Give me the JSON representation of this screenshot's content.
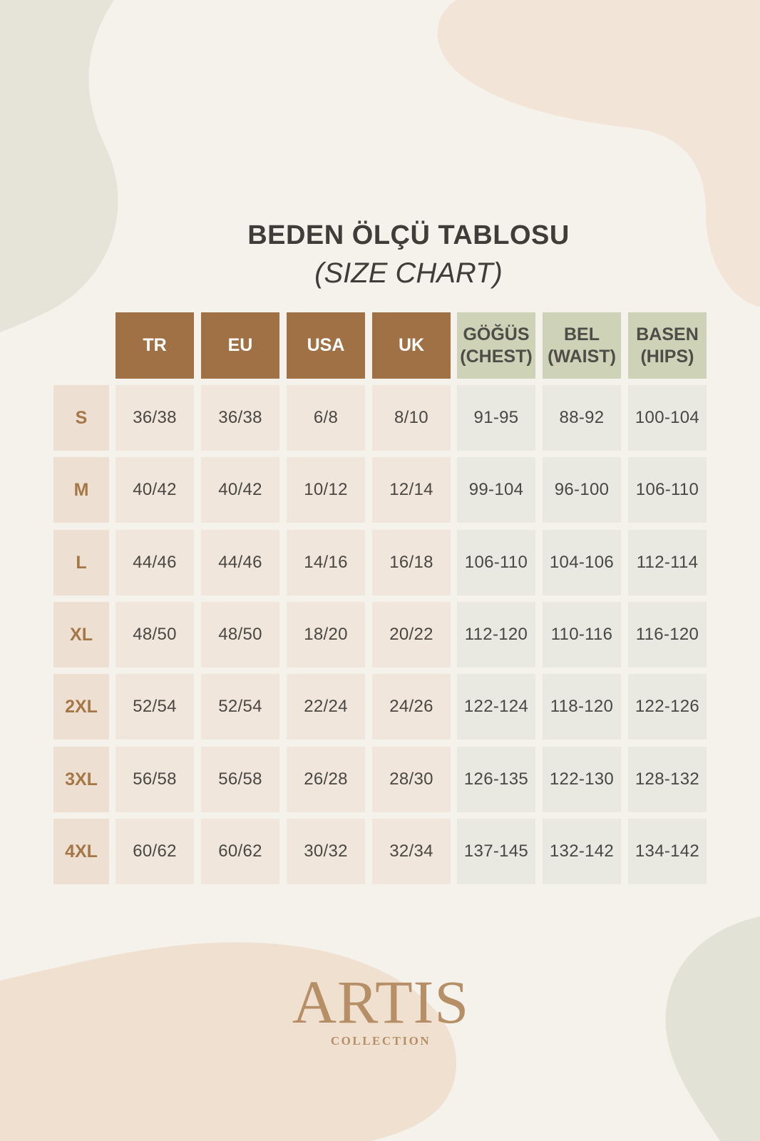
{
  "title": "BEDEN ÖLÇÜ TABLOSU",
  "subtitle": "(SIZE CHART)",
  "columns": [
    {
      "label": "TR",
      "style": "brown"
    },
    {
      "label": "EU",
      "style": "brown"
    },
    {
      "label": "USA",
      "style": "brown"
    },
    {
      "label": "UK",
      "style": "brown"
    },
    {
      "label": "GÖĞÜS\n(CHEST)",
      "style": "green"
    },
    {
      "label": "BEL\n(WAIST)",
      "style": "green"
    },
    {
      "label": "BASEN\n(HIPS)",
      "style": "green"
    }
  ],
  "rows": [
    {
      "size": "S",
      "values": [
        "36/38",
        "36/38",
        "6/8",
        "8/10",
        "91-95",
        "88-92",
        "100-104"
      ]
    },
    {
      "size": "M",
      "values": [
        "40/42",
        "40/42",
        "10/12",
        "12/14",
        "99-104",
        "96-100",
        "106-110"
      ]
    },
    {
      "size": "L",
      "values": [
        "44/46",
        "44/46",
        "14/16",
        "16/18",
        "106-110",
        "104-106",
        "112-114"
      ]
    },
    {
      "size": "XL",
      "values": [
        "48/50",
        "48/50",
        "18/20",
        "20/22",
        "112-120",
        "110-116",
        "116-120"
      ]
    },
    {
      "size": "2XL",
      "values": [
        "52/54",
        "52/54",
        "22/24",
        "24/26",
        "122-124",
        "118-120",
        "122-126"
      ]
    },
    {
      "size": "3XL",
      "values": [
        "56/58",
        "56/58",
        "26/28",
        "28/30",
        "126-135",
        "122-130",
        "128-132"
      ]
    },
    {
      "size": "4XL",
      "values": [
        "60/62",
        "60/62",
        "30/32",
        "32/34",
        "137-145",
        "132-142",
        "134-142"
      ]
    }
  ],
  "logo": {
    "word": "ARTIS",
    "sub": "COLLECTION"
  },
  "colors": {
    "background": "#f5f1eb",
    "header_brown": "#a07144",
    "header_green": "#ced2b6",
    "size_label": "#a67746",
    "logo": "#b68f67"
  }
}
